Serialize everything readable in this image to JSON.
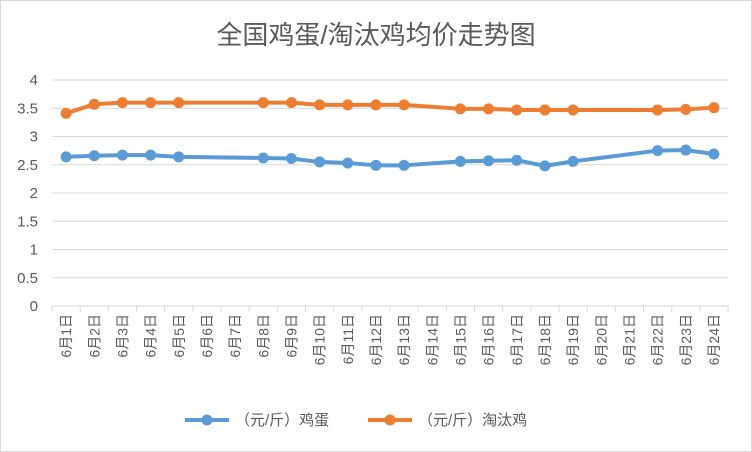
{
  "chart_data": {
    "type": "line",
    "title": "全国鸡蛋/淘汰鸡均价走势图",
    "ylim": [
      0,
      4
    ],
    "yticks": [
      "0",
      "0.5",
      "1",
      "1.5",
      "2",
      "2.5",
      "3",
      "3.5",
      "4"
    ],
    "grid": true,
    "legend_position": "bottom",
    "categories": [
      "6月1日",
      "6月2日",
      "6月3日",
      "6月4日",
      "6月5日",
      "6月6日",
      "6月7日",
      "6月8日",
      "6月9日",
      "6月10日",
      "6月11日",
      "6月12日",
      "6月13日",
      "6月14日",
      "6月15日",
      "6月16日",
      "6月17日",
      "6月18日",
      "6月19日",
      "6月20日",
      "6月21日",
      "6月22日",
      "6月23日",
      "6月24日"
    ],
    "series": [
      {
        "name": "（元/斤）鸡蛋",
        "color": "#5b9bd5",
        "values": [
          2.64,
          2.66,
          2.67,
          2.67,
          2.64,
          null,
          null,
          2.62,
          2.61,
          2.55,
          2.53,
          2.49,
          2.49,
          null,
          2.56,
          2.57,
          2.58,
          2.48,
          2.56,
          null,
          null,
          2.75,
          2.76,
          2.69
        ]
      },
      {
        "name": "（元/斤）淘汰鸡",
        "color": "#ed7d31",
        "values": [
          3.41,
          3.57,
          3.6,
          3.6,
          3.6,
          null,
          null,
          3.6,
          3.6,
          3.56,
          3.56,
          3.56,
          3.56,
          null,
          3.49,
          3.49,
          3.47,
          3.47,
          3.47,
          null,
          null,
          3.47,
          3.48,
          3.51
        ]
      }
    ]
  }
}
